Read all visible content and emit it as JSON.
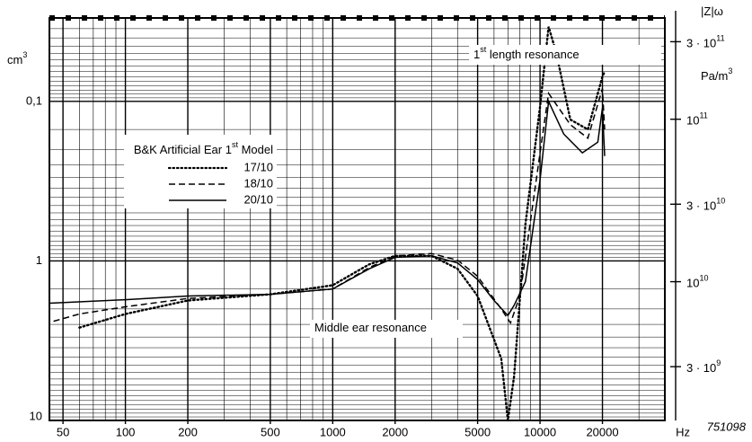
{
  "chart_data": {
    "type": "line",
    "x_log": true,
    "y_log": true,
    "y_inverted": true,
    "y2_log": true,
    "grid": true,
    "xlim": [
      43,
      40000
    ],
    "xticks": [
      50,
      100,
      200,
      500,
      1000,
      2000,
      5000,
      10000,
      20000
    ],
    "x_unit": "Hz",
    "ylim": [
      0.03,
      10
    ],
    "yticks": [
      {
        "value": 0.1,
        "label": "0,1"
      },
      1,
      10
    ],
    "y_label": [
      "cm",
      "3"
    ],
    "y2lim": [
      1400000000.0,
      420000000000.0
    ],
    "y2ticks": [
      {
        "value": 300000000000.0,
        "label": [
          "3 · 10",
          "11"
        ]
      },
      {
        "value": 100000000000.0,
        "label": [
          "10",
          "11"
        ]
      },
      {
        "value": 30000000000.0,
        "label": [
          "3 · 10",
          "10"
        ]
      },
      {
        "value": 10000000000.0,
        "label": [
          "10",
          "10"
        ]
      },
      {
        "value": 3000000000.0,
        "label": [
          "3 · 10",
          "9"
        ]
      }
    ],
    "y2_label": [
      "|Z|ω"
    ],
    "y2_unit": [
      "Pa/m",
      "3"
    ],
    "legend_title": [
      "B&K Artificial Ear 1",
      "st",
      " Model"
    ],
    "annotations": [
      [
        "1",
        "st",
        " length",
        " resonance"
      ],
      [
        "Middle ear resonance"
      ]
    ],
    "figure_code": "751098",
    "series": [
      {
        "name": "17/10",
        "color": "#000000",
        "dash": "dotted",
        "x": [
          60,
          100,
          200,
          500,
          1000,
          1500,
          2000,
          3000,
          4000,
          5000,
          6500,
          7000,
          7500,
          8500,
          10000,
          11000,
          12000,
          14000,
          17000,
          20000,
          20500
        ],
        "values": [
          2.62,
          2.15,
          1.77,
          1.62,
          1.42,
          1.05,
          0.93,
          0.93,
          1.12,
          1.66,
          4.1,
          10,
          5.3,
          0.59,
          0.108,
          0.034,
          0.05,
          0.13,
          0.15,
          0.07,
          0.065
        ]
      },
      {
        "name": "18/10",
        "color": "#000000",
        "dash": "dashed",
        "x": [
          45,
          60,
          100,
          200,
          500,
          1000,
          1500,
          2000,
          3000,
          4000,
          5000,
          6500,
          7200,
          8000,
          10000,
          11000,
          14000,
          17000,
          20000,
          20500
        ],
        "values": [
          2.39,
          2.15,
          1.94,
          1.72,
          1.62,
          1.5,
          1.1,
          0.93,
          0.9,
          0.99,
          1.25,
          2.0,
          2.45,
          1.66,
          0.21,
          0.089,
          0.14,
          0.17,
          0.083,
          0.15
        ]
      },
      {
        "name": "20/10",
        "color": "#000000",
        "dash": "solid",
        "x": [
          43,
          100,
          200,
          500,
          1000,
          1500,
          2000,
          3000,
          4000,
          5000,
          6000,
          7000,
          7500,
          8500,
          10000,
          11000,
          13000,
          16000,
          19000,
          20000,
          20500
        ],
        "values": [
          1.84,
          1.75,
          1.66,
          1.62,
          1.5,
          1.12,
          0.95,
          0.93,
          1.03,
          1.31,
          1.77,
          2.2,
          1.9,
          1.35,
          0.31,
          0.1,
          0.16,
          0.21,
          0.18,
          0.11,
          0.22
        ]
      }
    ]
  }
}
